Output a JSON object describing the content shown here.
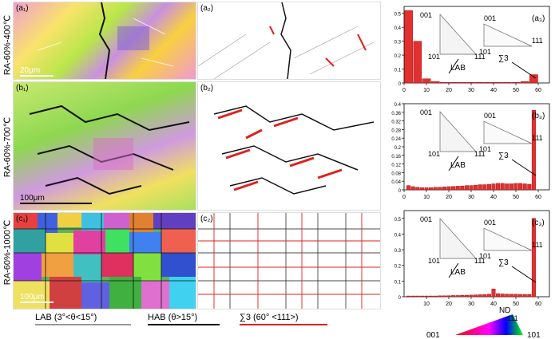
{
  "rows": [
    {
      "label": "RA-60%-400℃",
      "ebsd_label": "(a₁)",
      "gb_label": "(a₂)",
      "hist_label": "(a₃)",
      "scale": "20μm"
    },
    {
      "label": "RA-60%-700℃",
      "ebsd_label": "(b₁)",
      "gb_label": "(b₂)",
      "hist_label": "(b₃)",
      "scale": "100μm"
    },
    {
      "label": "RA-60%-1000℃",
      "ebsd_label": "(c₁)",
      "gb_label": "(c₂)",
      "hist_label": "(c₃)",
      "scale": "100μm"
    }
  ],
  "legend": {
    "lab": "LAB (3°<θ<15°)",
    "hab": "HAB (θ>15°)",
    "s3": "∑3 (60° <111>)"
  },
  "ipf_key": {
    "nd": "ND",
    "c001": "001",
    "c101": "101",
    "c111": "111"
  },
  "chart_data": [
    {
      "type": "bar",
      "label": "(a₃)",
      "xlim": [
        0,
        65
      ],
      "ylim": [
        0,
        0.55
      ],
      "xticks": [
        0,
        10,
        20,
        30,
        40,
        50,
        60
      ],
      "yticks": [
        0.0,
        0.1,
        0.2,
        0.3,
        0.4,
        0.5
      ],
      "bins": [
        2,
        6,
        10,
        14,
        18,
        22,
        26,
        30,
        34,
        38,
        42,
        46,
        50,
        54,
        58
      ],
      "values": [
        0.52,
        0.3,
        0.03,
        0.01,
        0.005,
        0.005,
        0.005,
        0.005,
        0.005,
        0.005,
        0.005,
        0.005,
        0.005,
        0.01,
        0.06
      ],
      "annotations": {
        "lab": "LAB",
        "s3": "∑3",
        "c001": "001",
        "c101": "101",
        "c111": "111"
      }
    },
    {
      "type": "bar",
      "label": "(b₃)",
      "xlim": [
        0,
        65
      ],
      "ylim": [
        0,
        0.4
      ],
      "xticks": [
        0,
        10,
        20,
        30,
        40,
        50,
        60
      ],
      "yticks": [
        0.0,
        0.04,
        0.08,
        0.12,
        0.16,
        0.2,
        0.24,
        0.28,
        0.32,
        0.36,
        0.4
      ],
      "bins": [
        2,
        4,
        6,
        8,
        10,
        12,
        14,
        16,
        18,
        20,
        22,
        24,
        26,
        28,
        30,
        32,
        34,
        36,
        38,
        40,
        42,
        44,
        46,
        48,
        50,
        52,
        54,
        56,
        58
      ],
      "values": [
        0.02,
        0.015,
        0.012,
        0.01,
        0.01,
        0.01,
        0.012,
        0.012,
        0.014,
        0.015,
        0.016,
        0.017,
        0.018,
        0.02,
        0.02,
        0.022,
        0.024,
        0.024,
        0.026,
        0.028,
        0.03,
        0.03,
        0.028,
        0.028,
        0.03,
        0.03,
        0.028,
        0.026,
        0.37
      ],
      "annotations": {
        "lab": "LAB",
        "s3": "∑3",
        "c001": "001",
        "c101": "101",
        "c111": "111"
      }
    },
    {
      "type": "bar",
      "label": "(c₃)",
      "xlim": [
        0,
        65
      ],
      "ylim": [
        0,
        0.55
      ],
      "xticks": [
        10,
        20,
        30,
        40,
        50,
        60
      ],
      "yticks": [
        0.0,
        0.1,
        0.2,
        0.3,
        0.4,
        0.5
      ],
      "bins": [
        2,
        4,
        6,
        8,
        10,
        12,
        14,
        16,
        18,
        20,
        22,
        24,
        26,
        28,
        30,
        32,
        34,
        36,
        38,
        40,
        42,
        44,
        46,
        48,
        50,
        52,
        54,
        56,
        58
      ],
      "values": [
        0.005,
        0.005,
        0.005,
        0.005,
        0.005,
        0.005,
        0.005,
        0.006,
        0.006,
        0.007,
        0.008,
        0.008,
        0.009,
        0.01,
        0.011,
        0.012,
        0.013,
        0.014,
        0.016,
        0.05,
        0.02,
        0.018,
        0.017,
        0.016,
        0.016,
        0.015,
        0.015,
        0.015,
        0.5
      ],
      "annotations": {
        "lab": "LAB",
        "s3": "∑3",
        "c001": "001",
        "c101": "101",
        "c111": "111"
      }
    }
  ]
}
